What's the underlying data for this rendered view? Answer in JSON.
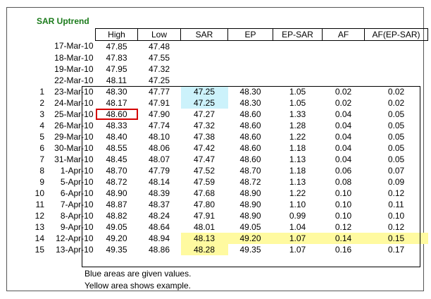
{
  "title": "SAR Uptrend",
  "headers": [
    "High",
    "Low",
    "SAR",
    "EP",
    "EP-SAR",
    "AF",
    "AF(EP-SAR)"
  ],
  "rows": [
    {
      "idx": "",
      "date": "17-Mar-10",
      "high": "47.85",
      "low": "47.48",
      "sar": "",
      "ep": "",
      "epsar": "",
      "af": "",
      "afep": ""
    },
    {
      "idx": "",
      "date": "18-Mar-10",
      "high": "47.83",
      "low": "47.55",
      "sar": "",
      "ep": "",
      "epsar": "",
      "af": "",
      "afep": ""
    },
    {
      "idx": "",
      "date": "19-Mar-10",
      "high": "47.95",
      "low": "47.32",
      "sar": "",
      "ep": "",
      "epsar": "",
      "af": "",
      "afep": ""
    },
    {
      "idx": "",
      "date": "22-Mar-10",
      "high": "48.11",
      "low": "47.25",
      "sar": "",
      "ep": "",
      "epsar": "",
      "af": "",
      "afep": ""
    },
    {
      "idx": "1",
      "date": "23-Mar-10",
      "high": "48.30",
      "low": "47.77",
      "sar": "47.25",
      "ep": "48.30",
      "epsar": "1.05",
      "af": "0.02",
      "afep": "0.02"
    },
    {
      "idx": "2",
      "date": "24-Mar-10",
      "high": "48.17",
      "low": "47.91",
      "sar": "47.25",
      "ep": "48.30",
      "epsar": "1.05",
      "af": "0.02",
      "afep": "0.02"
    },
    {
      "idx": "3",
      "date": "25-Mar-10",
      "high": "48.60",
      "low": "47.90",
      "sar": "47.27",
      "ep": "48.60",
      "epsar": "1.33",
      "af": "0.04",
      "afep": "0.05"
    },
    {
      "idx": "4",
      "date": "26-Mar-10",
      "high": "48.33",
      "low": "47.74",
      "sar": "47.32",
      "ep": "48.60",
      "epsar": "1.28",
      "af": "0.04",
      "afep": "0.05"
    },
    {
      "idx": "5",
      "date": "29-Mar-10",
      "high": "48.40",
      "low": "48.10",
      "sar": "47.38",
      "ep": "48.60",
      "epsar": "1.22",
      "af": "0.04",
      "afep": "0.05"
    },
    {
      "idx": "6",
      "date": "30-Mar-10",
      "high": "48.55",
      "low": "48.06",
      "sar": "47.42",
      "ep": "48.60",
      "epsar": "1.18",
      "af": "0.04",
      "afep": "0.05"
    },
    {
      "idx": "7",
      "date": "31-Mar-10",
      "high": "48.45",
      "low": "48.07",
      "sar": "47.47",
      "ep": "48.60",
      "epsar": "1.13",
      "af": "0.04",
      "afep": "0.05"
    },
    {
      "idx": "8",
      "date": "1-Apr-10",
      "high": "48.70",
      "low": "47.79",
      "sar": "47.52",
      "ep": "48.70",
      "epsar": "1.18",
      "af": "0.06",
      "afep": "0.07"
    },
    {
      "idx": "9",
      "date": "5-Apr-10",
      "high": "48.72",
      "low": "48.14",
      "sar": "47.59",
      "ep": "48.72",
      "epsar": "1.13",
      "af": "0.08",
      "afep": "0.09"
    },
    {
      "idx": "10",
      "date": "6-Apr-10",
      "high": "48.90",
      "low": "48.39",
      "sar": "47.68",
      "ep": "48.90",
      "epsar": "1.22",
      "af": "0.10",
      "afep": "0.12"
    },
    {
      "idx": "11",
      "date": "7-Apr-10",
      "high": "48.87",
      "low": "48.37",
      "sar": "47.80",
      "ep": "48.90",
      "epsar": "1.10",
      "af": "0.10",
      "afep": "0.11"
    },
    {
      "idx": "12",
      "date": "8-Apr-10",
      "high": "48.82",
      "low": "48.24",
      "sar": "47.91",
      "ep": "48.90",
      "epsar": "0.99",
      "af": "0.10",
      "afep": "0.10"
    },
    {
      "idx": "13",
      "date": "9-Apr-10",
      "high": "49.05",
      "low": "48.64",
      "sar": "48.01",
      "ep": "49.05",
      "epsar": "1.04",
      "af": "0.12",
      "afep": "0.12"
    },
    {
      "idx": "14",
      "date": "12-Apr-10",
      "high": "49.20",
      "low": "48.94",
      "sar": "48.13",
      "ep": "49.20",
      "epsar": "1.07",
      "af": "0.14",
      "afep": "0.15"
    },
    {
      "idx": "15",
      "date": "13-Apr-10",
      "high": "49.35",
      "low": "48.86",
      "sar": "48.28",
      "ep": "49.35",
      "epsar": "1.07",
      "af": "0.16",
      "afep": "0.17"
    }
  ],
  "notes": [
    "Blue areas are given values.",
    "Yellow area shows example."
  ],
  "colors": {
    "blue": "#ccf2fb",
    "yellow": "#fffaa0",
    "red": "#d40000",
    "title": "#1a7a1a"
  }
}
